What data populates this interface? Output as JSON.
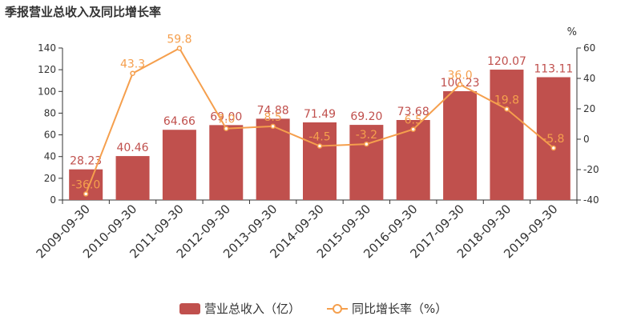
{
  "chart_data": {
    "type": "bar",
    "title": "季报营业总收入及同比增长率",
    "categories": [
      "2009-09-30",
      "2010-09-30",
      "2011-09-30",
      "2012-09-30",
      "2013-09-30",
      "2014-09-30",
      "2015-09-30",
      "2016-09-30",
      "2017-09-30",
      "2018-09-30",
      "2019-09-30"
    ],
    "series": [
      {
        "name": "营业总收入（亿）",
        "type": "bar",
        "axis": "left",
        "color": "#c0504d",
        "values": [
          28.23,
          40.46,
          64.66,
          69.0,
          74.88,
          71.49,
          69.2,
          73.68,
          100.23,
          120.07,
          113.11
        ],
        "labels": [
          "28.23",
          "40.46",
          "64.66",
          "69.00",
          "74.88",
          "71.49",
          "69.20",
          "73.68",
          "100.23",
          "120.07",
          "113.11"
        ]
      },
      {
        "name": "同比增长率（%）",
        "type": "line",
        "axis": "right",
        "color": "#f59f4d",
        "values": [
          -36.0,
          43.3,
          59.8,
          7.0,
          8.5,
          -4.5,
          -3.2,
          6.5,
          36.0,
          19.8,
          -5.8
        ],
        "labels": [
          "-36.0",
          "43.3",
          "59.8",
          "7.0",
          "8.5",
          "-4.5",
          "-3.2",
          "6.5",
          "36.0",
          "19.8",
          "-5.8"
        ]
      }
    ],
    "y_left": {
      "min": 0,
      "max": 140,
      "ticks": [
        "0",
        "20",
        "40",
        "60",
        "80",
        "100",
        "120",
        "140"
      ]
    },
    "y_right": {
      "min": -40,
      "max": 60,
      "unit": "%",
      "ticks": [
        "-40",
        "-20",
        "0",
        "20",
        "40",
        "60"
      ]
    },
    "grid": false,
    "legend_position": "bottom-center"
  }
}
